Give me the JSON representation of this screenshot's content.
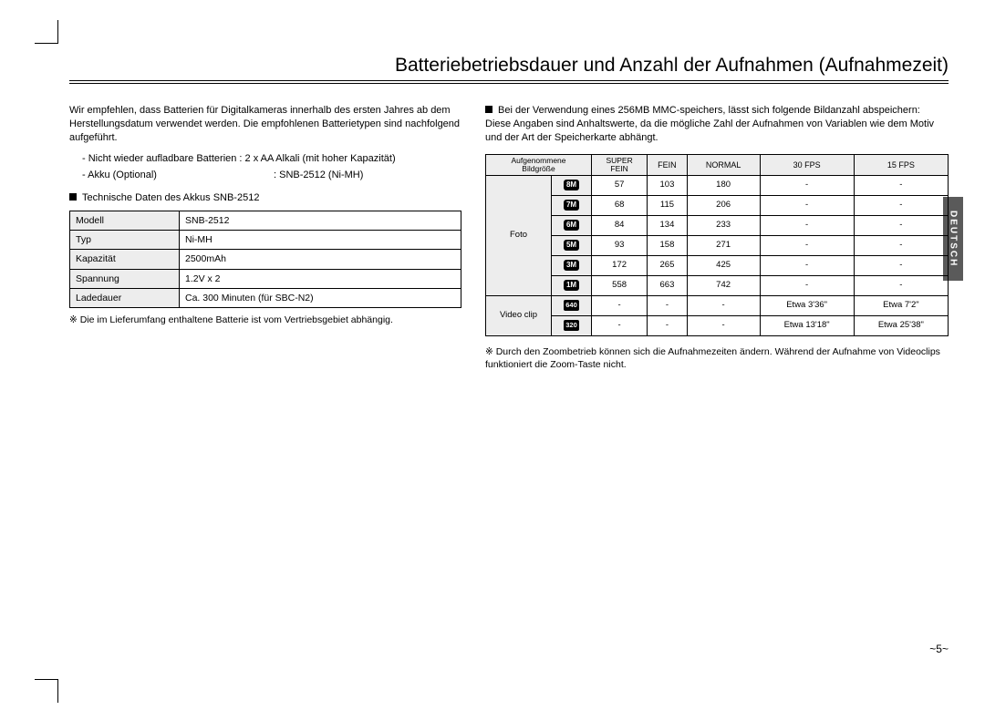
{
  "title": "Batteriebetriebsdauer und Anzahl der Aufnahmen (Aufnahmezeit)",
  "lang_tab": "DEUTSCH",
  "page_number": "~5~",
  "left": {
    "intro": "Wir empfehlen, dass Batterien für Digitalkameras innerhalb des ersten Jahres ab dem Herstellungsdatum verwendet werden. Die empfohlenen Batterietypen sind nachfolgend aufgeführt.",
    "line1": "- Nicht wieder aufladbare Batterien : 2 x AA Alkali (mit hoher Kapazität)",
    "line2_label": "- Akku (Optional)",
    "line2_value": ": SNB-2512 (Ni-MH)",
    "sect_head": "Technische Daten des Akkus SNB-2512",
    "spec_rows": [
      {
        "k": "Modell",
        "v": "SNB-2512"
      },
      {
        "k": "Typ",
        "v": "Ni-MH"
      },
      {
        "k": "Kapazität",
        "v": "2500mAh"
      },
      {
        "k": "Spannung",
        "v": "1.2V x 2"
      },
      {
        "k": "Ladedauer",
        "v": "Ca. 300 Minuten (für SBC-N2)"
      }
    ],
    "note": "Die im Lieferumfang enthaltene Batterie ist vom Vertriebsgebiet abhängig."
  },
  "right": {
    "intro": "Bei der Verwendung eines 256MB MMC-speichers, lässt sich folgende Bildanzahl abspeichern: Diese Angaben sind Anhaltswerte, da die mögliche Zahl der Aufnahmen von Variablen wie dem Motiv und der Art der Speicherkarte abhängt.",
    "headers": {
      "c0a": "Aufgenommene",
      "c0b": "Bildgröße",
      "c1a": "SUPER",
      "c1b": "FEIN",
      "c2": "FEIN",
      "c3": "NORMAL",
      "c4": "30 FPS",
      "c5": "15 FPS"
    },
    "foto_label": "Foto",
    "foto_rows": [
      {
        "badge": "8M",
        "sf": "57",
        "f": "103",
        "n": "180",
        "a": "-",
        "b": "-"
      },
      {
        "badge": "7M",
        "sf": "68",
        "f": "115",
        "n": "206",
        "a": "-",
        "b": "-"
      },
      {
        "badge": "6M",
        "sf": "84",
        "f": "134",
        "n": "233",
        "a": "-",
        "b": "-"
      },
      {
        "badge": "5M",
        "sf": "93",
        "f": "158",
        "n": "271",
        "a": "-",
        "b": "-"
      },
      {
        "badge": "3M",
        "sf": "172",
        "f": "265",
        "n": "425",
        "a": "-",
        "b": "-"
      },
      {
        "badge": "1M",
        "sf": "558",
        "f": "663",
        "n": "742",
        "a": "-",
        "b": "-"
      }
    ],
    "video_label": "Video clip",
    "video_rows": [
      {
        "badge": "640",
        "sf": "-",
        "f": "-",
        "n": "-",
        "a": "Etwa 3'36\"",
        "b": "Etwa 7'2\""
      },
      {
        "badge": "320",
        "sf": "-",
        "f": "-",
        "n": "-",
        "a": "Etwa 13'18\"",
        "b": "Etwa 25'38\""
      }
    ],
    "note": "Durch den Zoombetrieb können sich die Aufnahmezeiten ändern. Während der Aufnahme von Videoclips funktioniert die Zoom-Taste nicht."
  }
}
